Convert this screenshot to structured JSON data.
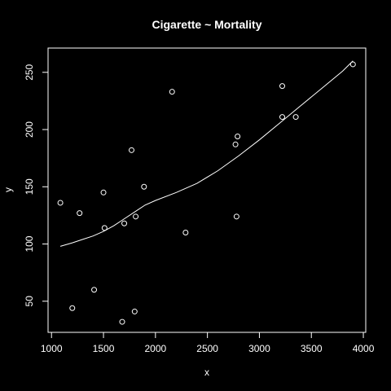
{
  "chart_data": {
    "type": "scatter",
    "title": "Cigarette ~ Mortality",
    "xlabel": "x",
    "ylabel": "y",
    "xlim": [
      1080,
      3910
    ],
    "ylim": [
      32,
      262
    ],
    "x_ticks": [
      1000,
      1500,
      2000,
      2500,
      3000,
      3500,
      4000
    ],
    "y_ticks": [
      50,
      100,
      150,
      200,
      250
    ],
    "grid": false,
    "legend": "none",
    "colors": {
      "background": "#000000",
      "foreground": "#ffffff"
    },
    "points": [
      {
        "x": 1085,
        "y": 136
      },
      {
        "x": 1200,
        "y": 44
      },
      {
        "x": 1270,
        "y": 127
      },
      {
        "x": 1410,
        "y": 60
      },
      {
        "x": 1500,
        "y": 145
      },
      {
        "x": 1510,
        "y": 114
      },
      {
        "x": 1680,
        "y": 32
      },
      {
        "x": 1700,
        "y": 118
      },
      {
        "x": 1770,
        "y": 182
      },
      {
        "x": 1800,
        "y": 41
      },
      {
        "x": 1810,
        "y": 124
      },
      {
        "x": 1890,
        "y": 150
      },
      {
        "x": 2160,
        "y": 233
      },
      {
        "x": 2290,
        "y": 110
      },
      {
        "x": 2770,
        "y": 187
      },
      {
        "x": 2780,
        "y": 124
      },
      {
        "x": 2790,
        "y": 194
      },
      {
        "x": 3220,
        "y": 211
      },
      {
        "x": 3220,
        "y": 238
      },
      {
        "x": 3350,
        "y": 211
      },
      {
        "x": 3900,
        "y": 257
      }
    ],
    "smooth_line": [
      {
        "x": 1085,
        "y": 98
      },
      {
        "x": 1200,
        "y": 101
      },
      {
        "x": 1300,
        "y": 104
      },
      {
        "x": 1400,
        "y": 107
      },
      {
        "x": 1500,
        "y": 111
      },
      {
        "x": 1600,
        "y": 116
      },
      {
        "x": 1700,
        "y": 122
      },
      {
        "x": 1800,
        "y": 128
      },
      {
        "x": 1900,
        "y": 134
      },
      {
        "x": 2000,
        "y": 138
      },
      {
        "x": 2200,
        "y": 145
      },
      {
        "x": 2400,
        "y": 153
      },
      {
        "x": 2600,
        "y": 164
      },
      {
        "x": 2800,
        "y": 177
      },
      {
        "x": 3000,
        "y": 191
      },
      {
        "x": 3200,
        "y": 206
      },
      {
        "x": 3400,
        "y": 221
      },
      {
        "x": 3600,
        "y": 236
      },
      {
        "x": 3800,
        "y": 251
      },
      {
        "x": 3900,
        "y": 260
      }
    ]
  }
}
